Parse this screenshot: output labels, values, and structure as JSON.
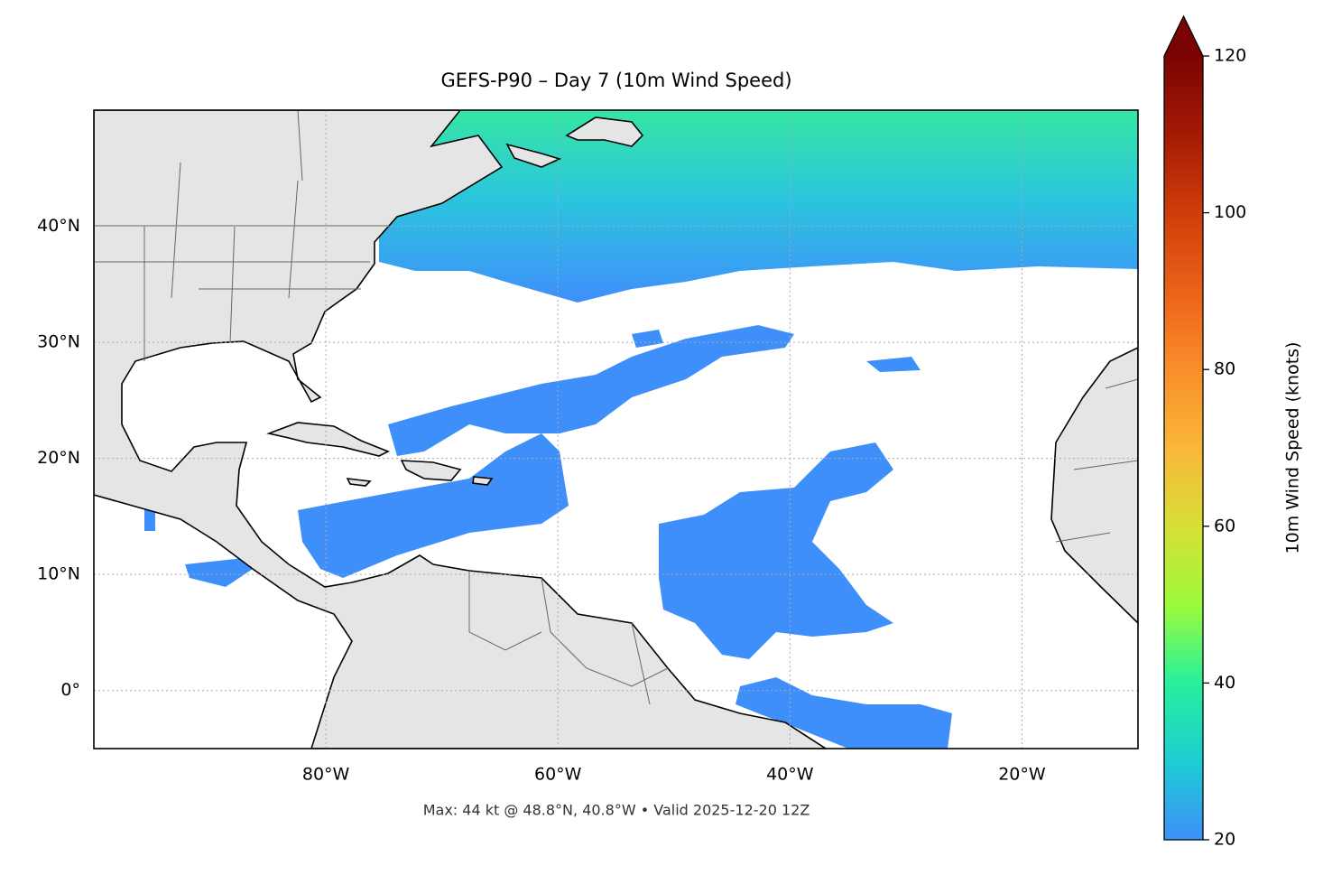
{
  "title": "GEFS-P90 – Day 7 (10m Wind Speed)",
  "footnote": "Max: 44 kt @ 48.8°N, 40.8°W • Valid 2025-12-20 12Z",
  "map": {
    "xlim": [
      -100,
      -10
    ],
    "ylim": [
      -5,
      50
    ],
    "xticks": [
      {
        "value": -80,
        "label": "80°W"
      },
      {
        "value": -60,
        "label": "60°W"
      },
      {
        "value": -40,
        "label": "40°W"
      },
      {
        "value": -20,
        "label": "20°W"
      }
    ],
    "yticks": [
      {
        "value": 0,
        "label": "0°"
      },
      {
        "value": 10,
        "label": "10°N"
      },
      {
        "value": 20,
        "label": "20°N"
      },
      {
        "value": 30,
        "label": "30°N"
      },
      {
        "value": 40,
        "label": "40°N"
      }
    ],
    "grid": true
  },
  "colorbar": {
    "label": "10m Wind Speed (knots)",
    "lim": [
      20,
      120
    ],
    "ticks": [
      20,
      40,
      60,
      80,
      100,
      120
    ],
    "colors": [
      "#3f8ffb",
      "#1dcdd2",
      "#27f09c",
      "#9dfb3c",
      "#d7df37",
      "#f9b739",
      "#f98e2b",
      "#eb6219",
      "#cf3d0a",
      "#a41b04",
      "#7a0403"
    ],
    "extend": "max"
  }
}
